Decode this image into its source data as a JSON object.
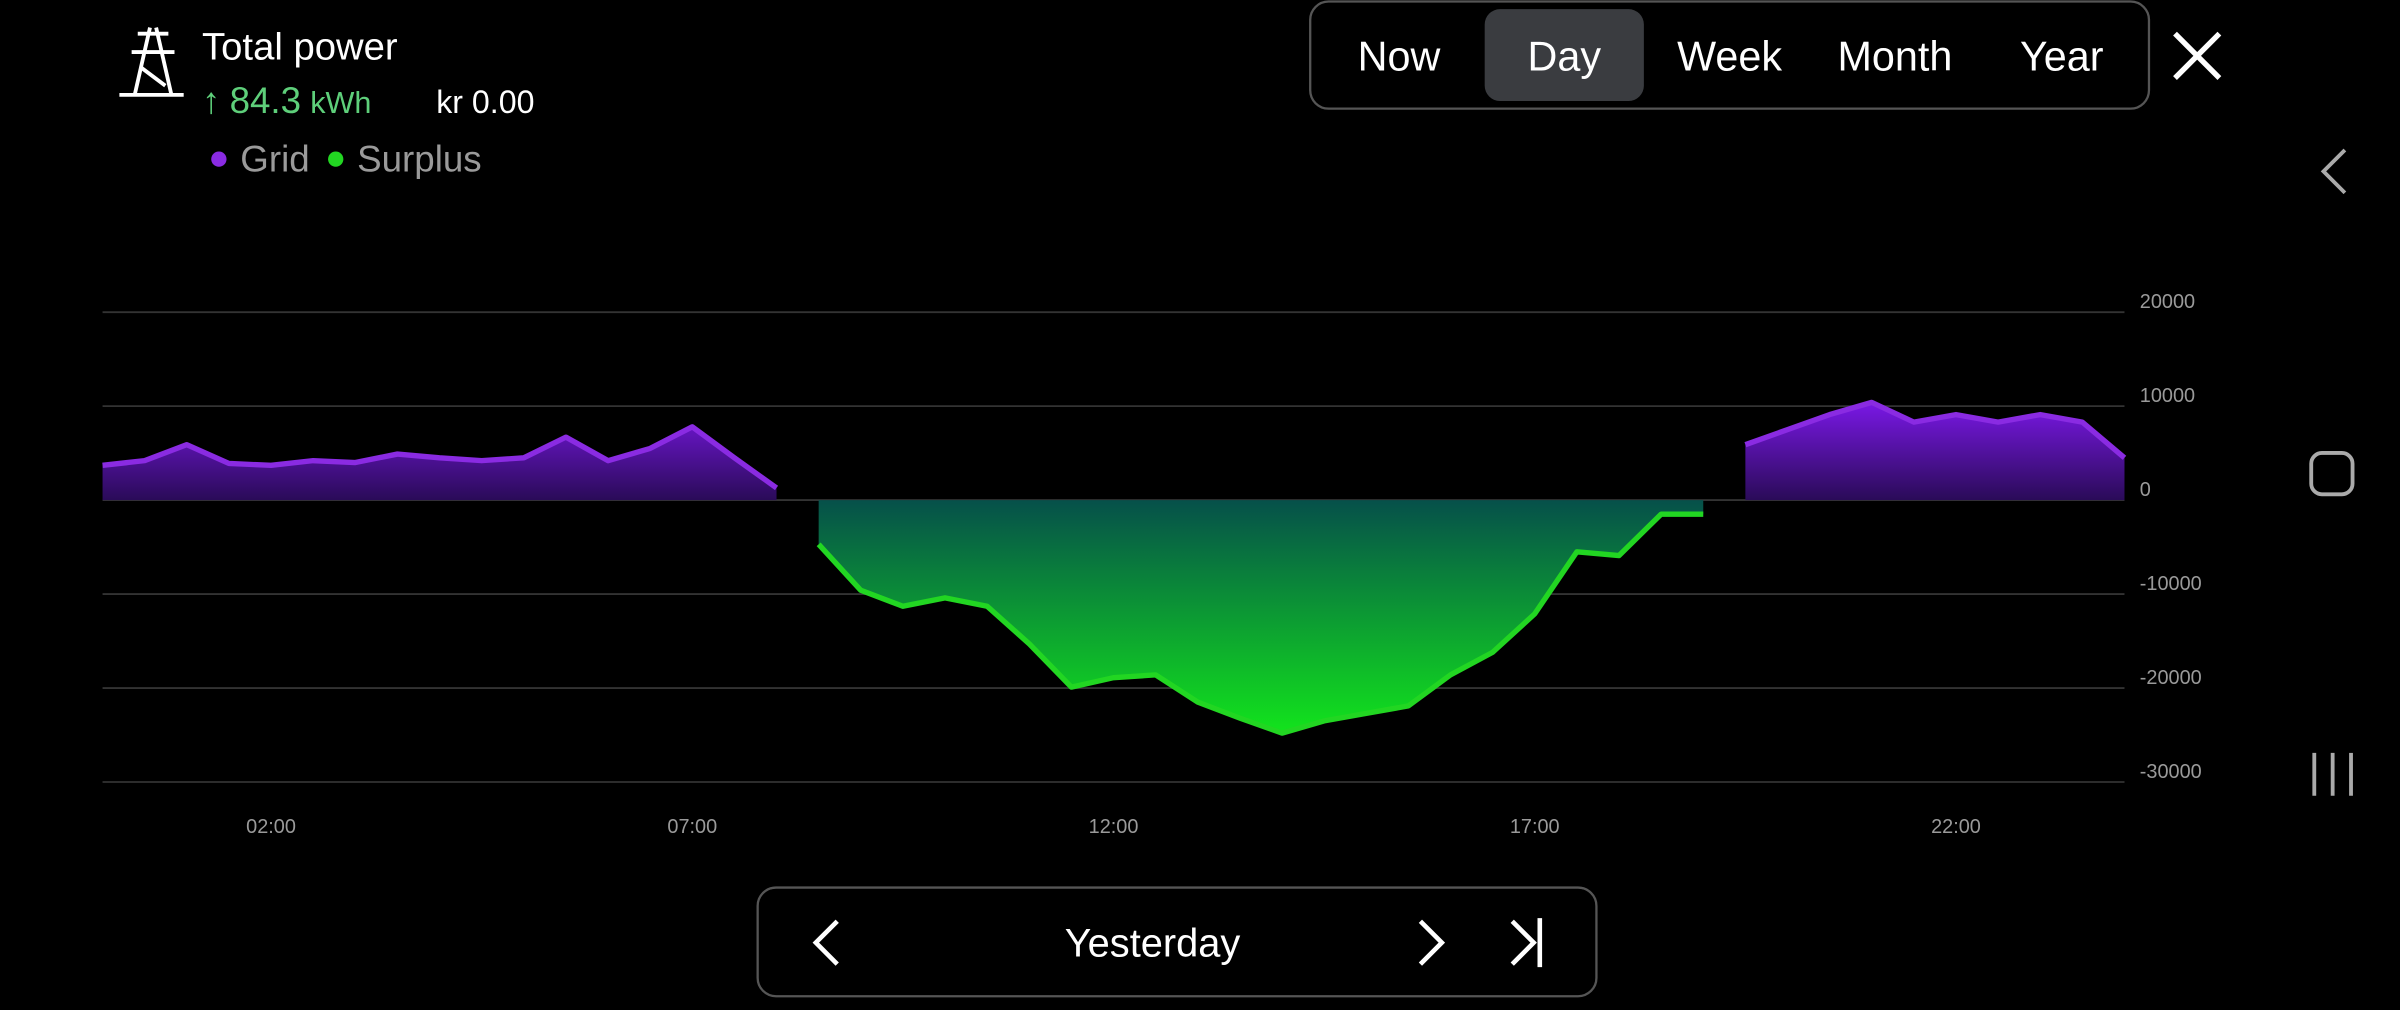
{
  "header": {
    "title": "Total power",
    "arrow": "↑",
    "energy": "84.3",
    "energy_unit": "kWh",
    "cost": "kr 0.00"
  },
  "tabs": [
    "Now",
    "Day",
    "Week",
    "Month",
    "Year"
  ],
  "active_tab": 1,
  "navigation": {
    "label": "Yesterday"
  },
  "chart_data": {
    "type": "area",
    "x": [
      0,
      0.5,
      1,
      1.5,
      2,
      2.5,
      3,
      3.5,
      4,
      4.5,
      5,
      5.5,
      6,
      6.5,
      7,
      7.5,
      8,
      8.5,
      9,
      9.5,
      10,
      10.5,
      11,
      11.5,
      12,
      12.5,
      13,
      13.5,
      14,
      14.5,
      15,
      15.5,
      16,
      16.5,
      17,
      17.5,
      18,
      18.5,
      19,
      19.5,
      20,
      20.5,
      21,
      21.5,
      22,
      22.5,
      23,
      23.5,
      24
    ],
    "series": [
      {
        "name": "Grid",
        "color": "#8a2be2",
        "values": [
          3700,
          4200,
          5900,
          3900,
          3700,
          4200,
          4000,
          4900,
          4500,
          4200,
          4500,
          6700,
          4200,
          5500,
          7800,
          4500,
          1300,
          null,
          null,
          null,
          null,
          null,
          null,
          null,
          null,
          null,
          null,
          null,
          null,
          null,
          null,
          null,
          null,
          null,
          null,
          null,
          null,
          null,
          null,
          5900,
          7500,
          9100,
          10400,
          8300,
          9100,
          8300,
          9100,
          8300,
          4500
        ]
      },
      {
        "name": "Surplus",
        "color": "#22d622",
        "values": [
          null,
          null,
          null,
          null,
          null,
          null,
          null,
          null,
          null,
          null,
          null,
          null,
          null,
          null,
          null,
          null,
          null,
          -4700,
          -9600,
          -11300,
          -10400,
          -11300,
          -15300,
          -19900,
          -18900,
          -18600,
          -21500,
          -23200,
          -24800,
          -23500,
          -22700,
          -21900,
          -18600,
          -16200,
          -12100,
          -5500,
          -5900,
          -1500,
          -1500,
          null,
          null,
          null,
          null,
          null,
          null,
          null,
          null,
          null,
          null
        ]
      }
    ],
    "xlim": [
      0,
      24
    ],
    "xticks": [
      {
        "value": 2,
        "label": "02:00"
      },
      {
        "value": 7,
        "label": "07:00"
      },
      {
        "value": 12,
        "label": "12:00"
      },
      {
        "value": 17,
        "label": "17:00"
      },
      {
        "value": 22,
        "label": "22:00"
      }
    ],
    "ylim": [
      -30000,
      20000
    ],
    "yticks": [
      20000,
      10000,
      0,
      -10000,
      -20000,
      -30000
    ],
    "grid": true
  }
}
